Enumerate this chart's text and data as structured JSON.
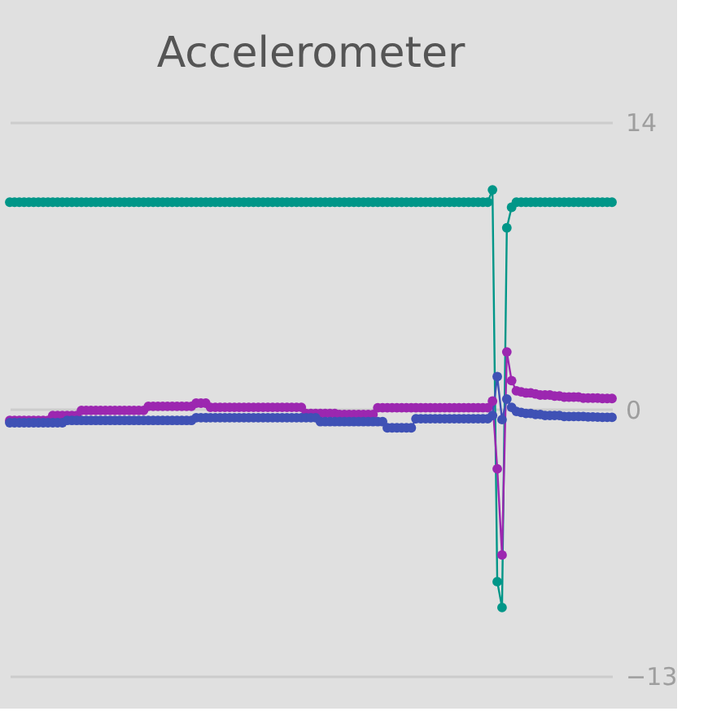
{
  "chart_data": {
    "type": "line",
    "title": "Accelerometer",
    "categories": [
      null,
      null,
      null,
      null,
      null,
      null,
      null,
      null,
      null,
      null,
      null,
      null,
      null,
      null,
      null,
      null,
      null,
      null,
      null,
      null,
      null,
      null,
      null,
      null,
      null,
      null,
      null,
      null,
      null,
      null,
      null,
      null,
      null,
      null,
      null,
      null,
      null,
      null,
      null,
      null,
      null,
      null,
      null,
      null,
      null,
      null,
      null,
      null,
      null,
      null,
      null,
      null,
      null,
      null,
      null,
      null,
      null,
      null,
      null,
      null,
      null,
      null,
      null,
      null,
      null,
      null,
      null,
      null,
      null,
      null,
      null,
      null,
      null,
      null,
      null,
      null,
      null,
      null,
      null,
      null,
      null,
      null,
      null,
      null,
      null,
      null,
      null,
      null,
      null,
      null,
      null,
      null,
      null,
      null,
      null,
      null,
      null,
      null,
      null,
      null,
      null,
      null,
      null,
      null,
      null,
      null,
      null,
      null,
      null,
      null,
      null,
      null,
      null,
      null,
      null,
      null,
      null,
      null,
      null,
      null,
      null,
      null,
      null,
      null,
      null,
      null,
      null
    ],
    "series": [
      {
        "color": "#009688",
        "values": [
          10.1,
          10.1,
          10.1,
          10.1,
          10.1,
          10.1,
          10.1,
          10.1,
          10.1,
          10.1,
          10.1,
          10.1,
          10.1,
          10.1,
          10.1,
          10.1,
          10.1,
          10.1,
          10.1,
          10.1,
          10.1,
          10.1,
          10.1,
          10.1,
          10.1,
          10.1,
          10.1,
          10.1,
          10.1,
          10.1,
          10.1,
          10.1,
          10.1,
          10.1,
          10.1,
          10.1,
          10.1,
          10.1,
          10.1,
          10.1,
          10.1,
          10.1,
          10.1,
          10.1,
          10.1,
          10.1,
          10.1,
          10.1,
          10.1,
          10.1,
          10.1,
          10.1,
          10.1,
          10.1,
          10.1,
          10.1,
          10.1,
          10.1,
          10.1,
          10.1,
          10.1,
          10.1,
          10.1,
          10.1,
          10.1,
          10.1,
          10.1,
          10.1,
          10.1,
          10.1,
          10.1,
          10.1,
          10.1,
          10.1,
          10.1,
          10.1,
          10.1,
          10.1,
          10.1,
          10.1,
          10.1,
          10.1,
          10.1,
          10.1,
          10.1,
          10.1,
          10.1,
          10.1,
          10.1,
          10.1,
          10.1,
          10.1,
          10.1,
          10.1,
          10.1,
          10.1,
          10.1,
          10.1,
          10.1,
          10.1,
          10.1,
          10.7,
          -8.4,
          -9.66,
          8.85,
          9.85,
          10.1,
          10.1,
          10.1,
          10.1,
          10.1,
          10.1,
          10.1,
          10.1,
          10.1,
          10.1,
          10.1,
          10.1,
          10.1,
          10.1,
          10.1,
          10.1,
          10.1,
          10.1,
          10.1,
          10.1,
          10.1
        ]
      },
      {
        "color": "#9c27b0",
        "values": [
          -0.54,
          -0.54,
          -0.54,
          -0.54,
          -0.54,
          -0.54,
          -0.54,
          -0.54,
          -0.54,
          -0.3,
          -0.3,
          -0.3,
          -0.3,
          -0.3,
          -0.3,
          -0.05,
          -0.05,
          -0.05,
          -0.05,
          -0.05,
          -0.05,
          -0.05,
          -0.05,
          -0.05,
          -0.05,
          -0.05,
          -0.05,
          -0.05,
          -0.05,
          0.15,
          0.15,
          0.15,
          0.15,
          0.15,
          0.15,
          0.15,
          0.15,
          0.15,
          0.15,
          0.3,
          0.3,
          0.3,
          0.1,
          0.1,
          0.1,
          0.1,
          0.1,
          0.1,
          0.1,
          0.1,
          0.1,
          0.1,
          0.1,
          0.1,
          0.1,
          0.1,
          0.1,
          0.1,
          0.1,
          0.1,
          0.1,
          0.1,
          -0.2,
          -0.2,
          -0.2,
          -0.2,
          -0.2,
          -0.2,
          -0.2,
          -0.25,
          -0.25,
          -0.25,
          -0.25,
          -0.25,
          -0.25,
          -0.25,
          -0.25,
          0.08,
          0.08,
          0.08,
          0.08,
          0.08,
          0.08,
          0.08,
          0.08,
          0.08,
          0.08,
          0.08,
          0.08,
          0.08,
          0.08,
          0.08,
          0.08,
          0.08,
          0.08,
          0.08,
          0.08,
          0.08,
          0.08,
          0.08,
          0.08,
          0.4,
          -2.9,
          -7.1,
          2.8,
          1.4,
          0.9,
          0.85,
          0.8,
          0.8,
          0.75,
          0.7,
          0.7,
          0.7,
          0.65,
          0.65,
          0.6,
          0.6,
          0.6,
          0.6,
          0.55,
          0.55,
          0.55,
          0.55,
          0.53,
          0.53,
          0.53
        ]
      },
      {
        "color": "#3f51b5",
        "values": [
          -0.65,
          -0.65,
          -0.65,
          -0.65,
          -0.65,
          -0.65,
          -0.65,
          -0.65,
          -0.65,
          -0.65,
          -0.65,
          -0.65,
          -0.54,
          -0.54,
          -0.54,
          -0.54,
          -0.54,
          -0.54,
          -0.54,
          -0.54,
          -0.54,
          -0.54,
          -0.54,
          -0.54,
          -0.54,
          -0.54,
          -0.54,
          -0.54,
          -0.54,
          -0.54,
          -0.54,
          -0.54,
          -0.54,
          -0.54,
          -0.54,
          -0.54,
          -0.54,
          -0.54,
          -0.54,
          -0.41,
          -0.41,
          -0.41,
          -0.41,
          -0.41,
          -0.41,
          -0.41,
          -0.41,
          -0.41,
          -0.41,
          -0.41,
          -0.41,
          -0.41,
          -0.41,
          -0.41,
          -0.41,
          -0.41,
          -0.41,
          -0.41,
          -0.41,
          -0.41,
          -0.41,
          -0.41,
          -0.41,
          -0.41,
          -0.41,
          -0.6,
          -0.6,
          -0.6,
          -0.6,
          -0.6,
          -0.6,
          -0.6,
          -0.6,
          -0.6,
          -0.6,
          -0.6,
          -0.6,
          -0.6,
          -0.6,
          -0.9,
          -0.9,
          -0.9,
          -0.9,
          -0.9,
          -0.9,
          -0.46,
          -0.46,
          -0.46,
          -0.46,
          -0.46,
          -0.46,
          -0.46,
          -0.46,
          -0.46,
          -0.46,
          -0.46,
          -0.46,
          -0.46,
          -0.46,
          -0.46,
          -0.46,
          -0.3,
          1.6,
          -0.5,
          0.5,
          0.1,
          -0.1,
          -0.15,
          -0.2,
          -0.2,
          -0.25,
          -0.25,
          -0.3,
          -0.3,
          -0.3,
          -0.3,
          -0.35,
          -0.35,
          -0.35,
          -0.35,
          -0.35,
          -0.37,
          -0.37,
          -0.38,
          -0.39,
          -0.39,
          -0.39
        ]
      }
    ],
    "ylim": [
      -13,
      14
    ],
    "yticks": [
      -13,
      0,
      14
    ],
    "grid": "y",
    "legend": false,
    "tick_labels": "y",
    "marker": "circle",
    "line_style": "solid"
  }
}
